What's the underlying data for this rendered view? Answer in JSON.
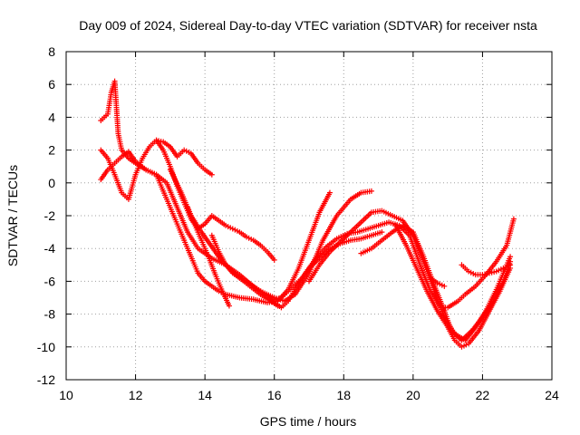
{
  "chart_data": {
    "type": "scatter",
    "title": "Day 009 of 2024, Sidereal Day-to-day VTEC variation (SDTVAR) for receiver nsta",
    "xlabel": "GPS time / hours",
    "ylabel": "SDTVAR / TECUs",
    "xlim": [
      10,
      24
    ],
    "ylim": [
      -12,
      8
    ],
    "xticks": [
      "10",
      "12",
      "14",
      "16",
      "18",
      "20",
      "22",
      "24"
    ],
    "yticks": [
      "8",
      "6",
      "4",
      "2",
      "0",
      "-2",
      "-4",
      "-6",
      "-8",
      "-10",
      "-12"
    ],
    "grid": true,
    "marker": "plus",
    "color": "#ff0000",
    "series": [
      {
        "name": "track-1",
        "x": [
          11.0,
          11.2,
          11.3,
          11.4,
          11.5,
          11.6,
          11.8,
          12.0,
          12.3,
          12.6,
          12.8,
          13.0,
          13.2,
          13.4,
          13.6,
          13.8,
          14.0,
          14.2,
          14.4,
          14.6,
          15.0,
          15.4,
          15.8,
          16.1,
          16.4,
          16.7,
          17.0,
          17.3,
          17.6
        ],
        "y": [
          3.8,
          4.2,
          5.5,
          6.2,
          3.0,
          2.0,
          1.5,
          1.2,
          0.8,
          0.5,
          -0.5,
          -1.5,
          -2.5,
          -3.5,
          -4.5,
          -5.5,
          -6.0,
          -6.3,
          -6.6,
          -6.8,
          -7.0,
          -7.1,
          -7.3,
          -7.2,
          -6.5,
          -5.2,
          -3.5,
          -1.8,
          -0.6
        ]
      },
      {
        "name": "track-2",
        "x": [
          11.0,
          11.2,
          11.4,
          11.6,
          11.8,
          12.0,
          12.3,
          12.6,
          12.9,
          13.2,
          13.5,
          13.8,
          14.2,
          14.6,
          15.0,
          15.5,
          16.0,
          16.3,
          16.6,
          17.0,
          17.4,
          17.8,
          18.2,
          18.5,
          18.8
        ],
        "y": [
          0.2,
          0.8,
          1.2,
          1.6,
          1.9,
          1.3,
          0.8,
          0.5,
          0.0,
          -1.5,
          -3.0,
          -4.0,
          -4.6,
          -5.0,
          -5.6,
          -6.5,
          -7.0,
          -7.2,
          -6.8,
          -5.5,
          -3.5,
          -2.0,
          -1.0,
          -0.6,
          -0.5
        ]
      },
      {
        "name": "track-3",
        "x": [
          11.0,
          11.2,
          11.4,
          11.6,
          11.8,
          12.0,
          12.2,
          12.4,
          12.6,
          12.8,
          13.0,
          13.2,
          13.4,
          13.6,
          13.8,
          14.0,
          14.2
        ],
        "y": [
          2.0,
          1.5,
          0.5,
          -0.6,
          -1.0,
          0.5,
          1.5,
          2.2,
          2.6,
          2.5,
          2.2,
          1.6,
          2.0,
          1.8,
          1.2,
          0.8,
          0.5
        ]
      },
      {
        "name": "track-4",
        "x": [
          12.6,
          12.8,
          13.0,
          13.2,
          13.4,
          13.6,
          13.8,
          14.0,
          14.2,
          14.4,
          14.6,
          14.8,
          15.0,
          15.2,
          15.4,
          15.6,
          15.8,
          16.0
        ],
        "y": [
          2.6,
          2.0,
          1.0,
          -0.2,
          -1.2,
          -2.2,
          -2.8,
          -2.5,
          -2.0,
          -2.3,
          -2.6,
          -2.8,
          -3.0,
          -3.3,
          -3.5,
          -3.8,
          -4.2,
          -4.7
        ]
      },
      {
        "name": "track-5",
        "x": [
          13.0,
          13.3,
          13.6,
          13.9,
          14.1,
          14.3,
          14.5,
          14.7,
          15.0,
          15.3,
          15.6,
          15.9,
          16.1
        ],
        "y": [
          0.8,
          -0.5,
          -2.0,
          -3.0,
          -3.6,
          -4.2,
          -4.8,
          -5.2,
          -5.8,
          -6.3,
          -6.8,
          -7.2,
          -7.5
        ]
      },
      {
        "name": "track-6",
        "x": [
          13.5,
          13.7,
          13.9,
          14.1,
          14.3,
          14.5,
          14.7
        ],
        "y": [
          -1.5,
          -2.5,
          -3.5,
          -4.5,
          -5.6,
          -6.6,
          -7.5
        ]
      },
      {
        "name": "track-7",
        "x": [
          14.2,
          14.4,
          14.6,
          14.8,
          15.0,
          15.2,
          15.4,
          15.6,
          15.8,
          16.0,
          16.2,
          16.4,
          16.6,
          16.9,
          17.2,
          17.5,
          17.8,
          18.1,
          18.4,
          18.7,
          19.0,
          19.3,
          19.6,
          19.9,
          20.2,
          20.5,
          20.8,
          21.0,
          21.3,
          21.5,
          21.8,
          22.1,
          22.4,
          22.7,
          22.9
        ],
        "y": [
          -3.2,
          -4.2,
          -5.0,
          -5.5,
          -5.8,
          -6.0,
          -6.3,
          -6.6,
          -7.0,
          -7.3,
          -7.6,
          -7.2,
          -6.5,
          -5.5,
          -4.6,
          -3.9,
          -3.4,
          -3.1,
          -3.0,
          -2.8,
          -2.6,
          -2.4,
          -2.6,
          -3.2,
          -5.0,
          -6.6,
          -7.6,
          -7.6,
          -7.2,
          -6.8,
          -6.3,
          -5.6,
          -4.8,
          -3.8,
          -2.2
        ]
      },
      {
        "name": "track-8",
        "x": [
          17.0,
          17.3,
          17.6,
          17.9,
          18.2,
          18.5,
          18.8,
          19.1,
          19.4,
          19.7,
          20.0,
          20.3,
          20.6,
          20.9,
          21.2,
          21.5,
          21.8,
          22.1,
          22.4,
          22.6,
          22.8
        ],
        "y": [
          -6.0,
          -5.0,
          -4.2,
          -3.6,
          -3.0,
          -2.4,
          -1.8,
          -1.7,
          -2.0,
          -2.3,
          -3.2,
          -4.8,
          -6.5,
          -8.2,
          -9.2,
          -9.6,
          -8.8,
          -7.8,
          -6.5,
          -5.5,
          -4.5
        ]
      },
      {
        "name": "track-9",
        "x": [
          18.5,
          18.8,
          19.1,
          19.4,
          19.7,
          20.0,
          20.3,
          20.6,
          20.9,
          21.1,
          21.4,
          21.7,
          22.0,
          22.3,
          22.6,
          22.8
        ],
        "y": [
          -4.3,
          -4.0,
          -3.5,
          -3.0,
          -2.6,
          -3.0,
          -4.5,
          -6.2,
          -7.8,
          -9.0,
          -9.6,
          -9.0,
          -8.2,
          -7.2,
          -6.0,
          -4.8
        ]
      },
      {
        "name": "track-10",
        "x": [
          19.5,
          19.8,
          20.1,
          20.4,
          20.7,
          21.0,
          21.2,
          21.4,
          21.6,
          21.9,
          22.2,
          22.5,
          22.8
        ],
        "y": [
          -2.6,
          -3.8,
          -5.2,
          -6.6,
          -7.8,
          -8.8,
          -9.6,
          -10.0,
          -9.8,
          -9.0,
          -7.8,
          -6.6,
          -5.2
        ]
      },
      {
        "name": "track-11",
        "x": [
          20.5,
          20.7,
          20.9
        ],
        "y": [
          -5.8,
          -6.1,
          -6.3
        ]
      },
      {
        "name": "track-12",
        "x": [
          21.4,
          21.6,
          21.8,
          22.0,
          22.2,
          22.4,
          22.6,
          22.8
        ],
        "y": [
          -5.0,
          -5.4,
          -5.6,
          -5.6,
          -5.5,
          -5.4,
          -5.2,
          -5.0
        ]
      },
      {
        "name": "track-13",
        "x": [
          15.8,
          16.0,
          16.2,
          16.4,
          16.6,
          16.8,
          17.0,
          17.3,
          17.6,
          17.9,
          18.2,
          18.5,
          18.8,
          19.1
        ],
        "y": [
          -6.9,
          -7.1,
          -7.0,
          -6.6,
          -6.2,
          -5.8,
          -5.2,
          -4.6,
          -4.0,
          -3.7,
          -3.5,
          -3.4,
          -3.2,
          -3.0
        ]
      }
    ]
  }
}
